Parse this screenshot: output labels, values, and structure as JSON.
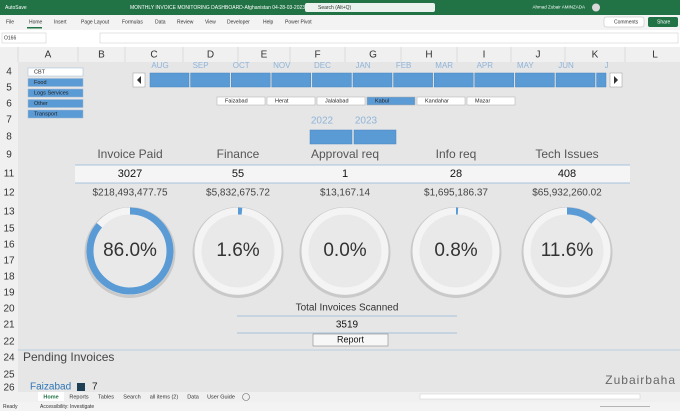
{
  "title_bar": {
    "autosave": "AutoSave",
    "file_name": "MONTHLY INVOICE MONITORING DASHBOARD-Afghanistan 04-28-03-2023 -",
    "search": "Search (Alt+Q)",
    "user": "Ahmad Zubair AMINZADA"
  },
  "ribbon": {
    "tabs": [
      "File",
      "Home",
      "Insert",
      "Page Layout",
      "Formulas",
      "Data",
      "Review",
      "View",
      "Developer",
      "Help",
      "Power Pivot"
    ],
    "comments": "Comments",
    "share": "Share"
  },
  "formula_bar": {
    "name_box": "O166"
  },
  "columns": [
    "A",
    "B",
    "C",
    "D",
    "E",
    "F",
    "G",
    "H",
    "I",
    "J",
    "K",
    "L"
  ],
  "rows": [
    4,
    5,
    6,
    7,
    8,
    9,
    11,
    12,
    13,
    15,
    16,
    17,
    18,
    19,
    20,
    21,
    22,
    24,
    25,
    26
  ],
  "category_slicer": [
    {
      "label": "CBT",
      "selected": false
    },
    {
      "label": "Food",
      "selected": true
    },
    {
      "label": "Logs Services",
      "selected": true
    },
    {
      "label": "Other",
      "selected": true
    },
    {
      "label": "Transport",
      "selected": true
    }
  ],
  "months": [
    "AUG",
    "SEP",
    "OCT",
    "NOV",
    "DEC",
    "JAN",
    "FEB",
    "MAR",
    "APR",
    "MAY",
    "JUN",
    "J"
  ],
  "provinces": [
    {
      "label": "Faizabad",
      "selected": false
    },
    {
      "label": "Herat",
      "selected": false
    },
    {
      "label": "Jalalabad",
      "selected": false
    },
    {
      "label": "Kabul",
      "selected": true
    },
    {
      "label": "Kandahar",
      "selected": false
    },
    {
      "label": "Mazar",
      "selected": false
    }
  ],
  "years": [
    "2022",
    "2023"
  ],
  "kpis": [
    {
      "title": "Invoice Paid",
      "count": 3027,
      "amount": "$218,493,477.75",
      "percent": {
        "value": 86,
        "label": "86.0%"
      }
    },
    {
      "title": "Finance",
      "count": 55,
      "amount": "$5,832,675.72",
      "percent": {
        "value": 1.6,
        "label": "1.6%"
      }
    },
    {
      "title": "Approval req",
      "count": 1,
      "amount": "$13,167.14",
      "percent": {
        "value": 0,
        "label": "0.0%"
      }
    },
    {
      "title": "Info req",
      "count": 28,
      "amount": "$1,695,186.37",
      "percent": {
        "value": 0.8,
        "label": "0.8%"
      }
    },
    {
      "title": "Tech Issues",
      "count": 408,
      "amount": "$65,932,260.02",
      "percent": {
        "value": 11.6,
        "label": "11.6%"
      }
    }
  ],
  "total": {
    "label": "Total Invoices Scanned",
    "value": 3519,
    "button": "Report"
  },
  "pending": {
    "title": "Pending Invoices",
    "items": [
      {
        "name": "Faizabad",
        "count": 7
      }
    ]
  },
  "watermark": "Zubairbaha",
  "sheet_tabs": [
    "Home",
    "Reports",
    "Tables",
    "Search",
    "all items (2)",
    "Data",
    "User Guide"
  ],
  "status": {
    "ready": "Ready",
    "accessibility": "Accessibility: Investigate"
  }
}
